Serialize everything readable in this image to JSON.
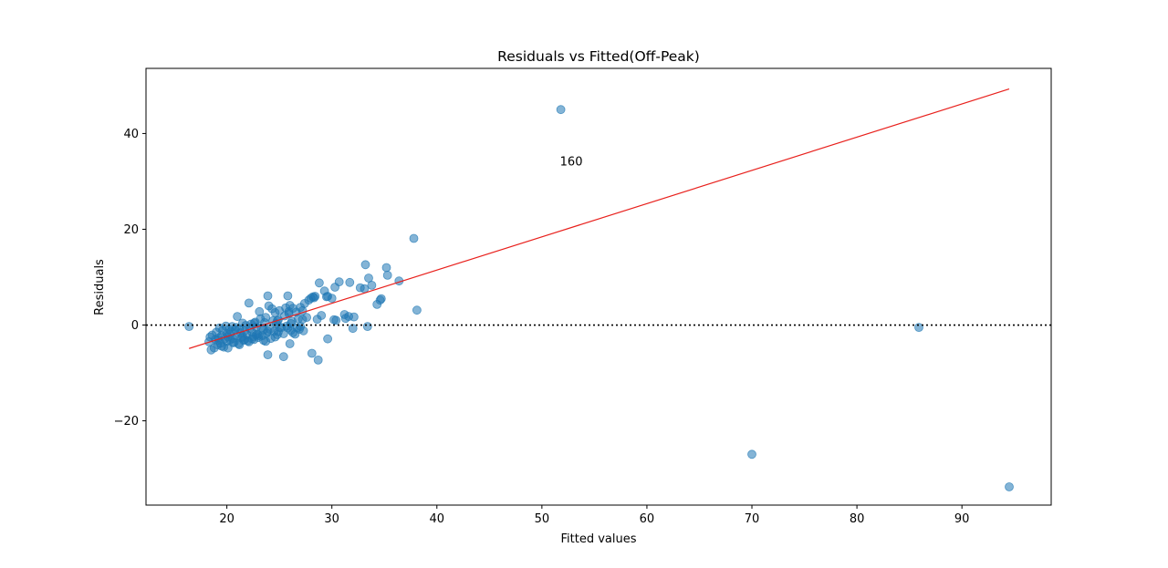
{
  "chart_data": {
    "type": "scatter",
    "title": "Residuals vs Fitted(Off-Peak)",
    "xlabel": "Fitted values",
    "ylabel": "Residuals",
    "xlim": [
      12.3,
      98.5
    ],
    "ylim": [
      -37.6,
      53.6
    ],
    "xticks": [
      20,
      30,
      40,
      50,
      60,
      70,
      80,
      90
    ],
    "yticks": [
      -20,
      0,
      20,
      40
    ],
    "grid": false,
    "colors": {
      "points": "#1f77b4",
      "lowess": "#e8201c",
      "zero_line": "#000000"
    },
    "reference_line": {
      "y": 0,
      "style": "dotted"
    },
    "lowess_line": {
      "x": [
        16.4,
        94.5
      ],
      "y": [
        -4.9,
        49.3
      ]
    },
    "annotations": [
      {
        "text": "160",
        "x": 52.8,
        "y": 34.3
      }
    ],
    "points": {
      "x": [
        16.4,
        18.3,
        18.5,
        18.6,
        18.8,
        18.9,
        19.0,
        19.1,
        19.2,
        19.3,
        19.4,
        19.5,
        19.6,
        19.7,
        19.8,
        19.9,
        20.0,
        20.0,
        20.1,
        20.2,
        20.3,
        20.4,
        20.5,
        20.6,
        20.7,
        20.8,
        20.9,
        21.0,
        21.0,
        21.1,
        21.2,
        21.3,
        21.4,
        21.5,
        21.6,
        21.7,
        21.8,
        21.9,
        22.0,
        22.1,
        22.2,
        22.3,
        22.4,
        22.5,
        22.6,
        22.7,
        22.8,
        22.9,
        23.0,
        23.1,
        23.2,
        23.3,
        23.4,
        23.5,
        23.6,
        23.7,
        23.8,
        23.9,
        24.0,
        24.1,
        24.2,
        24.3,
        24.4,
        24.5,
        24.6,
        24.7,
        24.8,
        24.9,
        25.0,
        25.2,
        25.4,
        25.5,
        25.6,
        25.7,
        25.8,
        25.9,
        26.0,
        26.1,
        26.2,
        26.3,
        26.5,
        26.6,
        26.7,
        26.8,
        27.0,
        27.2,
        27.4,
        27.6,
        27.8,
        28.0,
        28.2,
        28.4,
        28.6,
        28.8,
        29.0,
        29.3,
        29.6,
        30.0,
        30.3,
        30.7,
        31.2,
        31.6,
        32.1,
        32.7,
        33.2,
        33.5,
        33.8,
        34.3,
        34.7,
        35.2,
        35.3,
        36.4,
        37.8,
        38.1,
        23.9,
        25.4,
        26.0,
        28.1,
        28.7,
        29.6,
        33.4,
        32.0,
        30.2,
        31.3,
        20.1,
        21.2,
        22.1,
        23.5,
        24.6,
        26.3,
        27.3,
        22.4,
        23.0,
        24.9,
        25.8,
        26.9,
        19.5,
        20.6,
        21.7,
        22.8,
        23.9,
        25.0,
        26.1,
        27.2,
        18.4,
        19.2,
        20.3,
        21.5,
        22.6,
        23.7,
        24.8,
        25.9,
        27.0,
        28.3,
        29.5,
        30.4,
        31.7,
        33.1,
        34.6,
        51.8,
        70.0,
        85.9,
        94.5
      ],
      "y": [
        -0.3,
        -3.5,
        -5.2,
        -2.1,
        -4.8,
        -3.0,
        -1.5,
        -4.1,
        -2.7,
        -0.6,
        -3.8,
        -2.2,
        -1.1,
        -4.6,
        -2.9,
        -0.2,
        -3.4,
        -1.8,
        -2.5,
        -0.9,
        -3.1,
        -1.4,
        -0.3,
        -2.8,
        -3.6,
        -1.0,
        -0.5,
        1.8,
        -2.3,
        -3.9,
        -0.8,
        -1.6,
        -2.7,
        0.4,
        -3.2,
        -1.2,
        -0.1,
        -2.0,
        -3.3,
        4.6,
        -0.7,
        0.2,
        -1.5,
        -2.4,
        -3.0,
        0.6,
        -0.4,
        -1.9,
        -2.6,
        2.8,
        1.3,
        -0.6,
        -2.2,
        -1.0,
        0.5,
        -3.4,
        -1.7,
        6.1,
        4.0,
        -0.9,
        -2.8,
        3.4,
        0.9,
        -1.3,
        2.6,
        0.3,
        -2.0,
        1.1,
        3.0,
        -0.5,
        -1.8,
        1.9,
        3.6,
        -0.2,
        6.1,
        2.4,
        4.1,
        -1.1,
        0.8,
        3.5,
        -1.9,
        2.7,
        -0.6,
        1.3,
        -0.3,
        3.0,
        4.5,
        1.6,
        5.2,
        5.6,
        5.9,
        6.0,
        1.2,
        8.8,
        2.0,
        7.1,
        6.0,
        5.6,
        7.9,
        9.0,
        2.2,
        1.8,
        1.7,
        7.8,
        12.6,
        9.8,
        8.3,
        4.3,
        5.5,
        12.0,
        10.4,
        9.2,
        18.1,
        3.1,
        -6.2,
        -6.6,
        -3.9,
        -5.9,
        -7.3,
        -2.9,
        -0.3,
        -0.7,
        1.1,
        1.4,
        -4.8,
        -4.1,
        -3.5,
        -3.2,
        -2.5,
        -1.6,
        -1.2,
        -2.9,
        -2.2,
        -1.4,
        -0.6,
        -0.9,
        -4.4,
        -3.7,
        -3.0,
        -2.1,
        -1.3,
        -0.5,
        0.3,
        1.2,
        -2.5,
        -3.2,
        -1.9,
        -2.4,
        0.4,
        1.6,
        0.9,
        2.8,
        3.7,
        5.7,
        5.9,
        1.0,
        8.9,
        7.6,
        5.2,
        45.0,
        -27.0,
        -0.5,
        -33.8
      ]
    }
  }
}
